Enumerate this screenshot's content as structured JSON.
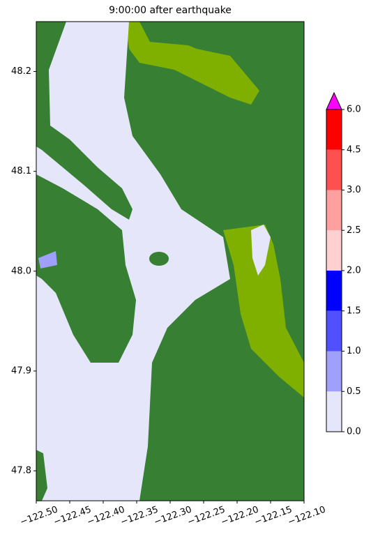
{
  "chart_data": {
    "type": "map",
    "title": "9:00:00 after earthquake",
    "xlim": [
      -122.5,
      -122.1
    ],
    "ylim": [
      47.77,
      48.25
    ],
    "xticks": [
      {
        "value": -122.5,
        "label": "−122.50"
      },
      {
        "value": -122.45,
        "label": "−122.45"
      },
      {
        "value": -122.4,
        "label": "−122.40"
      },
      {
        "value": -122.35,
        "label": "−122.35"
      },
      {
        "value": -122.3,
        "label": "−122.30"
      },
      {
        "value": -122.25,
        "label": "−122.25"
      },
      {
        "value": -122.2,
        "label": "−122.20"
      },
      {
        "value": -122.15,
        "label": "−122.15"
      },
      {
        "value": -122.1,
        "label": "−122.10"
      }
    ],
    "yticks": [
      47.8,
      47.9,
      {
        "value": 48.0,
        "label": "48.0"
      },
      48.1,
      48.2
    ],
    "colorbar": {
      "levels": [
        0,
        0.5,
        1,
        1.5,
        2,
        2.5,
        3,
        4.5,
        6
      ],
      "colors": [
        "#e6e6fa",
        "#9f9ffc",
        "#5050ff",
        "#0000ff",
        "#ffd0d0",
        "#ff9f9f",
        "#ff5050",
        "#ff0000"
      ],
      "extend_color": "#ff00ff",
      "ticks": [
        {
          "value": 0,
          "label": "0.0"
        },
        {
          "value": 0.5,
          "label": "0.5"
        },
        {
          "value": 1,
          "label": "1.0"
        },
        {
          "value": 1.5,
          "label": "1.5"
        },
        {
          "value": 2,
          "label": "2.0"
        },
        {
          "value": 2.5,
          "label": "2.5"
        },
        {
          "value": 3,
          "label": "3.0"
        },
        {
          "value": 4.5,
          "label": "4.5"
        },
        {
          "value": 6,
          "label": "6.0"
        }
      ]
    }
  }
}
